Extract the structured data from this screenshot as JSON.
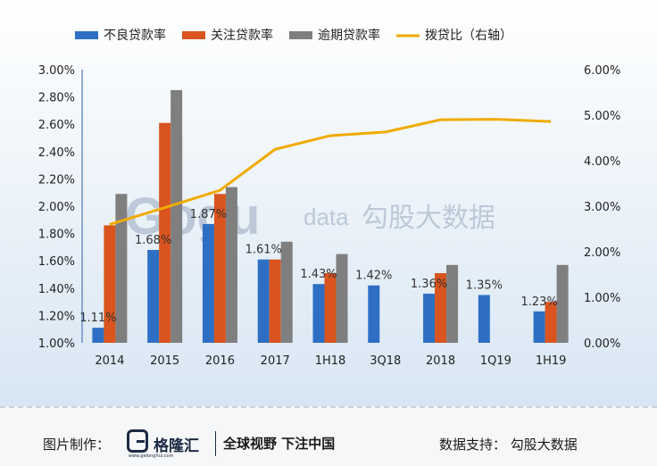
{
  "chart_data": {
    "type": "bar",
    "categories": [
      "2014",
      "2015",
      "2016",
      "2017",
      "1H18",
      "3Q18",
      "2018",
      "1Q19",
      "1H19"
    ],
    "series": [
      {
        "name": "不良贷款率",
        "kind": "bar",
        "axis": "left",
        "color": "#2e6fc4",
        "values": [
          1.11,
          1.68,
          1.87,
          1.61,
          1.43,
          1.42,
          1.36,
          1.35,
          1.23
        ]
      },
      {
        "name": "关注贷款率",
        "kind": "bar",
        "axis": "left",
        "color": "#d9541e",
        "values": [
          1.86,
          2.61,
          2.09,
          1.61,
          1.51,
          null,
          1.51,
          null,
          1.3
        ]
      },
      {
        "name": "逾期贷款率",
        "kind": "bar",
        "axis": "left",
        "color": "#7f7f7f",
        "values": [
          2.09,
          2.85,
          2.14,
          1.74,
          1.65,
          null,
          1.57,
          null,
          1.57
        ]
      },
      {
        "name": "拨贷比（右轴）",
        "kind": "line",
        "axis": "right",
        "color": "#f0ab00",
        "values": [
          2.6,
          2.97,
          3.35,
          4.25,
          4.55,
          4.63,
          4.9,
          4.91,
          4.86
        ]
      }
    ],
    "data_labels": [
      "1.11%",
      "1.68%",
      "1.87%",
      "1.61%",
      "1.43%",
      "1.42%",
      "1.36%",
      "1.35%",
      "1.23%"
    ],
    "left_axis": {
      "ylim": [
        1.0,
        3.0
      ],
      "ticks": [
        "1.00%",
        "1.20%",
        "1.40%",
        "1.60%",
        "1.80%",
        "2.00%",
        "2.20%",
        "2.40%",
        "2.60%",
        "2.80%",
        "3.00%"
      ]
    },
    "right_axis": {
      "ylim": [
        0.0,
        6.0
      ],
      "ticks": [
        "0.00%",
        "1.00%",
        "2.00%",
        "3.00%",
        "4.00%",
        "5.00%",
        "6.00%"
      ]
    },
    "legend_position": "top",
    "grid": false,
    "title": "",
    "xlabel": "",
    "ylabel": ""
  },
  "watermark": {
    "logo_text": "Gogu",
    "sub_text": "data",
    "name": "勾股大数据"
  },
  "footer": {
    "credit_label": "图片制作：",
    "brand_name": "格隆汇",
    "brand_url": "www.gelonghui.com",
    "slogan": "全球视野 下注中国",
    "source": "数据支持： 勾股大数据"
  }
}
